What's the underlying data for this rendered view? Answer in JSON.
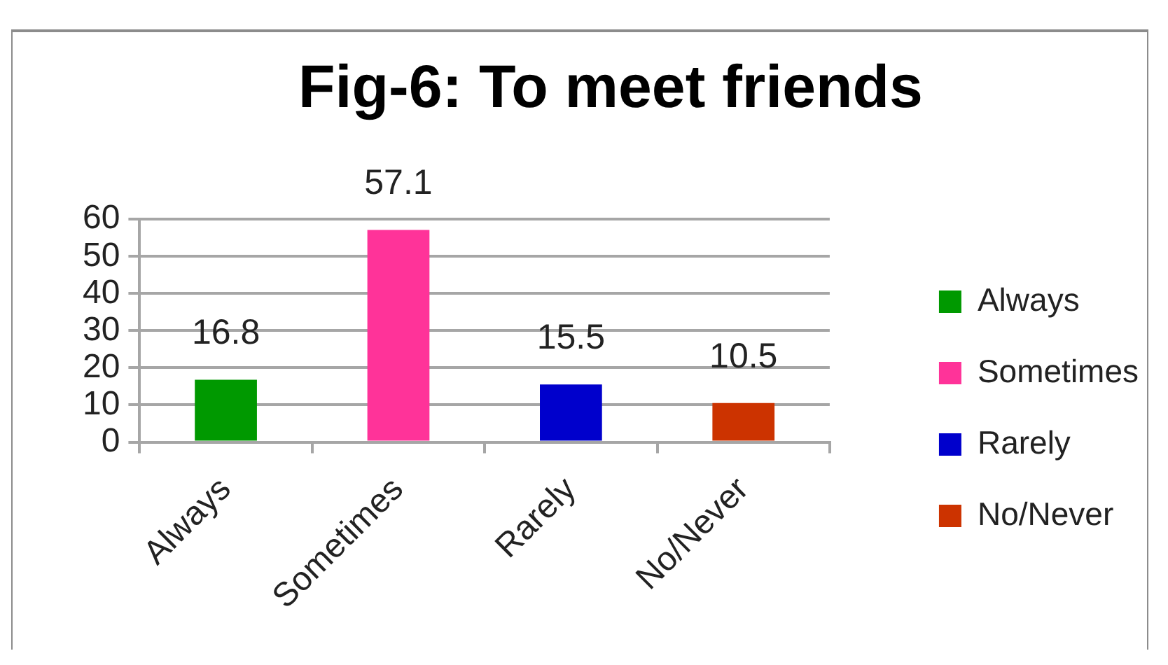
{
  "chart_data": {
    "type": "bar",
    "title": "Fig-6: To meet friends",
    "categories": [
      "Always",
      "Sometimes",
      "Rarely",
      "No/Never"
    ],
    "series": [
      {
        "name": "Always",
        "color": "#009900",
        "values": [
          16.8,
          null,
          null,
          null
        ]
      },
      {
        "name": "Sometimes",
        "color": "#ff3399",
        "values": [
          null,
          57.1,
          null,
          null
        ]
      },
      {
        "name": "Rarely",
        "color": "#0000cc",
        "values": [
          null,
          null,
          15.5,
          null
        ]
      },
      {
        "name": "No/Never",
        "color": "#cc3300",
        "values": [
          null,
          null,
          null,
          10.5
        ]
      }
    ],
    "ylim": [
      0,
      60
    ],
    "yticks": [
      0,
      10,
      20,
      30,
      40,
      50,
      60
    ],
    "grid": "y",
    "legend": "right",
    "data_labels": true
  }
}
